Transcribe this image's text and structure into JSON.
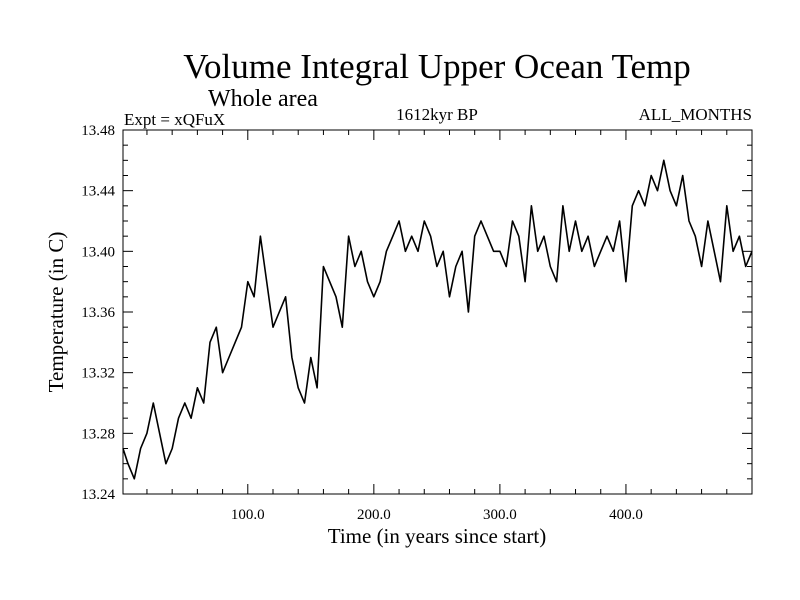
{
  "chart_data": {
    "type": "line",
    "title": "Volume Integral Upper Ocean Temp",
    "subtitle": "Whole area",
    "annotations": {
      "experiment": "Expt = xQFuX",
      "period": "1612kyr BP",
      "months": "ALL_MONTHS"
    },
    "xlabel": "Time (in years since start)",
    "ylabel": "Temperature (in C)",
    "xlim": [
      1,
      500
    ],
    "ylim": [
      13.24,
      13.48
    ],
    "x_ticks": [
      100,
      200,
      300,
      400
    ],
    "x_tick_labels": [
      "100.0",
      "200.0",
      "300.0",
      "400.0"
    ],
    "y_ticks": [
      13.24,
      13.28,
      13.32,
      13.36,
      13.4,
      13.44,
      13.48
    ],
    "y_tick_labels": [
      "13.24",
      "13.28",
      "13.32",
      "13.36",
      "13.40",
      "13.44",
      "13.48"
    ],
    "series": [
      {
        "name": "Temperature",
        "x": [
          1,
          5,
          10,
          15,
          20,
          25,
          30,
          35,
          40,
          45,
          50,
          55,
          60,
          65,
          70,
          75,
          80,
          85,
          90,
          95,
          100,
          105,
          110,
          115,
          120,
          125,
          130,
          135,
          140,
          145,
          150,
          155,
          160,
          165,
          170,
          175,
          180,
          185,
          190,
          195,
          200,
          205,
          210,
          215,
          220,
          225,
          230,
          235,
          240,
          245,
          250,
          255,
          260,
          265,
          270,
          275,
          280,
          285,
          290,
          295,
          300,
          305,
          310,
          315,
          320,
          325,
          330,
          335,
          340,
          345,
          350,
          355,
          360,
          365,
          370,
          375,
          380,
          385,
          390,
          395,
          400,
          405,
          410,
          415,
          420,
          425,
          430,
          435,
          440,
          445,
          450,
          455,
          460,
          465,
          470,
          475,
          480,
          485,
          490,
          495,
          500
        ],
        "values": [
          13.27,
          13.26,
          13.25,
          13.27,
          13.28,
          13.3,
          13.28,
          13.26,
          13.27,
          13.29,
          13.3,
          13.29,
          13.31,
          13.3,
          13.34,
          13.35,
          13.32,
          13.33,
          13.34,
          13.35,
          13.38,
          13.37,
          13.41,
          13.38,
          13.35,
          13.36,
          13.37,
          13.33,
          13.31,
          13.3,
          13.33,
          13.31,
          13.39,
          13.38,
          13.37,
          13.35,
          13.41,
          13.39,
          13.4,
          13.38,
          13.37,
          13.38,
          13.4,
          13.41,
          13.42,
          13.4,
          13.41,
          13.4,
          13.42,
          13.41,
          13.39,
          13.4,
          13.37,
          13.39,
          13.4,
          13.36,
          13.41,
          13.42,
          13.41,
          13.4,
          13.4,
          13.39,
          13.42,
          13.41,
          13.38,
          13.43,
          13.4,
          13.41,
          13.39,
          13.38,
          13.43,
          13.4,
          13.42,
          13.4,
          13.41,
          13.39,
          13.4,
          13.41,
          13.4,
          13.42,
          13.38,
          13.43,
          13.44,
          13.43,
          13.45,
          13.44,
          13.46,
          13.44,
          13.43,
          13.45,
          13.42,
          13.41,
          13.39,
          13.42,
          13.4,
          13.38,
          13.43,
          13.4,
          13.41,
          13.39,
          13.4
        ]
      }
    ]
  }
}
